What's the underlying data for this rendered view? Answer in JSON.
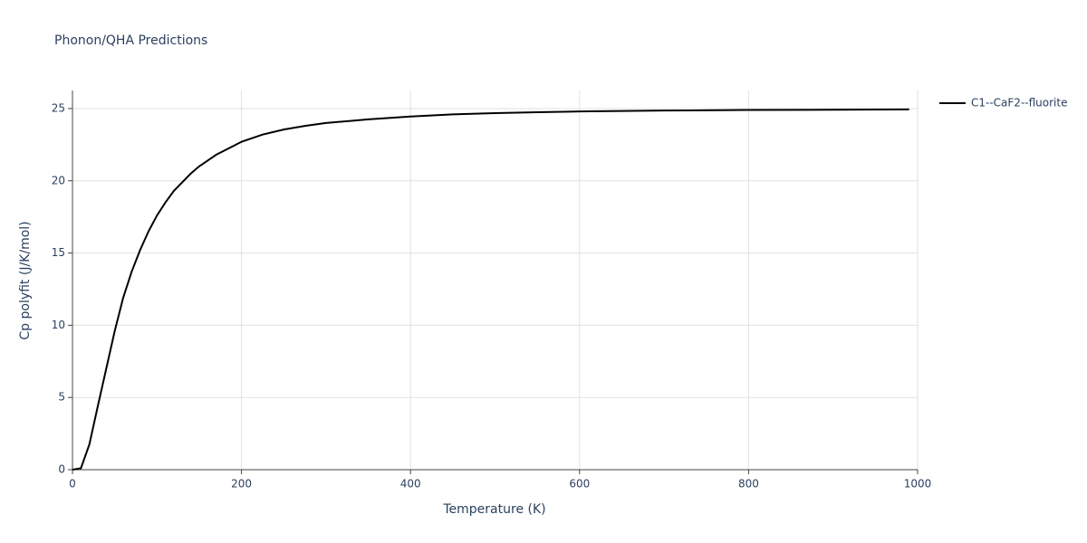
{
  "chart_data": {
    "type": "line",
    "title": "Phonon/QHA Predictions",
    "x_label": "Temperature (K)",
    "y_label": "Cp polyfit (J/K/mol)",
    "x": [
      0,
      10,
      20,
      30,
      40,
      50,
      60,
      70,
      80,
      90,
      100,
      110,
      120,
      130,
      140,
      150,
      160,
      170,
      180,
      190,
      200,
      225,
      250,
      275,
      300,
      350,
      400,
      450,
      500,
      550,
      600,
      700,
      800,
      900,
      990
    ],
    "series": [
      {
        "name": "C1--CaF2--fluorite",
        "color": "#000000",
        "values": [
          0,
          0.1,
          1.75,
          4.4,
          7.0,
          9.6,
          11.9,
          13.7,
          15.2,
          16.5,
          17.6,
          18.5,
          19.3,
          19.9,
          20.5,
          21.0,
          21.4,
          21.8,
          22.1,
          22.4,
          22.7,
          23.2,
          23.55,
          23.8,
          24.0,
          24.25,
          24.45,
          24.6,
          24.68,
          24.75,
          24.8,
          24.86,
          24.9,
          24.92,
          24.94
        ]
      }
    ],
    "xlim": [
      0,
      1000
    ],
    "xticks": [
      0,
      200,
      400,
      600,
      800,
      1000
    ],
    "ylim": [
      0,
      26.25
    ],
    "yticks": [
      0,
      5,
      10,
      15,
      20,
      25
    ],
    "grid": true,
    "legend": "right"
  }
}
